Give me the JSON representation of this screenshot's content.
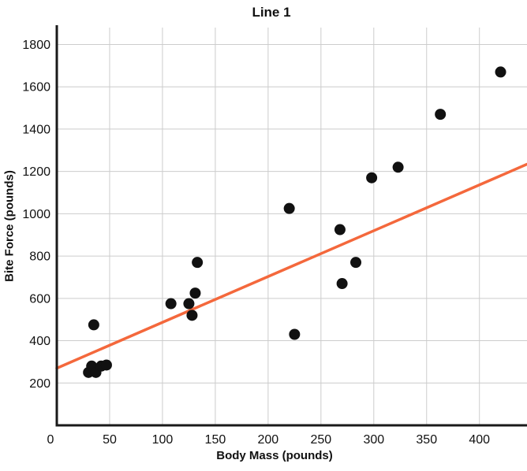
{
  "chart_data": {
    "type": "scatter",
    "title": "Line 1",
    "xlabel": "Body Mass (pounds)",
    "ylabel": "Bite Force (pounds)",
    "xlim": [
      0,
      445
    ],
    "ylim": [
      0,
      1880
    ],
    "x_ticks": [
      0,
      50,
      100,
      150,
      200,
      250,
      300,
      350,
      400
    ],
    "y_ticks": [
      200,
      400,
      600,
      800,
      1000,
      1200,
      1400,
      1600,
      1800
    ],
    "grid": true,
    "legend": "none",
    "points": [
      [
        30,
        250
      ],
      [
        33,
        280
      ],
      [
        37,
        250
      ],
      [
        42,
        280
      ],
      [
        47,
        285
      ],
      [
        35,
        475
      ],
      [
        108,
        575
      ],
      [
        125,
        575
      ],
      [
        128,
        520
      ],
      [
        131,
        625
      ],
      [
        133,
        770
      ],
      [
        220,
        1025
      ],
      [
        225,
        430
      ],
      [
        268,
        925
      ],
      [
        270,
        670
      ],
      [
        283,
        770
      ],
      [
        298,
        1170
      ],
      [
        323,
        1220
      ],
      [
        363,
        1470
      ],
      [
        420,
        1670
      ]
    ],
    "trend_line": {
      "x1": 0,
      "y1": 270,
      "x2": 445,
      "y2": 1234
    },
    "colors": {
      "trend": "#f4683c",
      "point": "#111111",
      "grid": "#cccccc",
      "axis": "#1a1a1a",
      "background": "#ffffff"
    }
  }
}
